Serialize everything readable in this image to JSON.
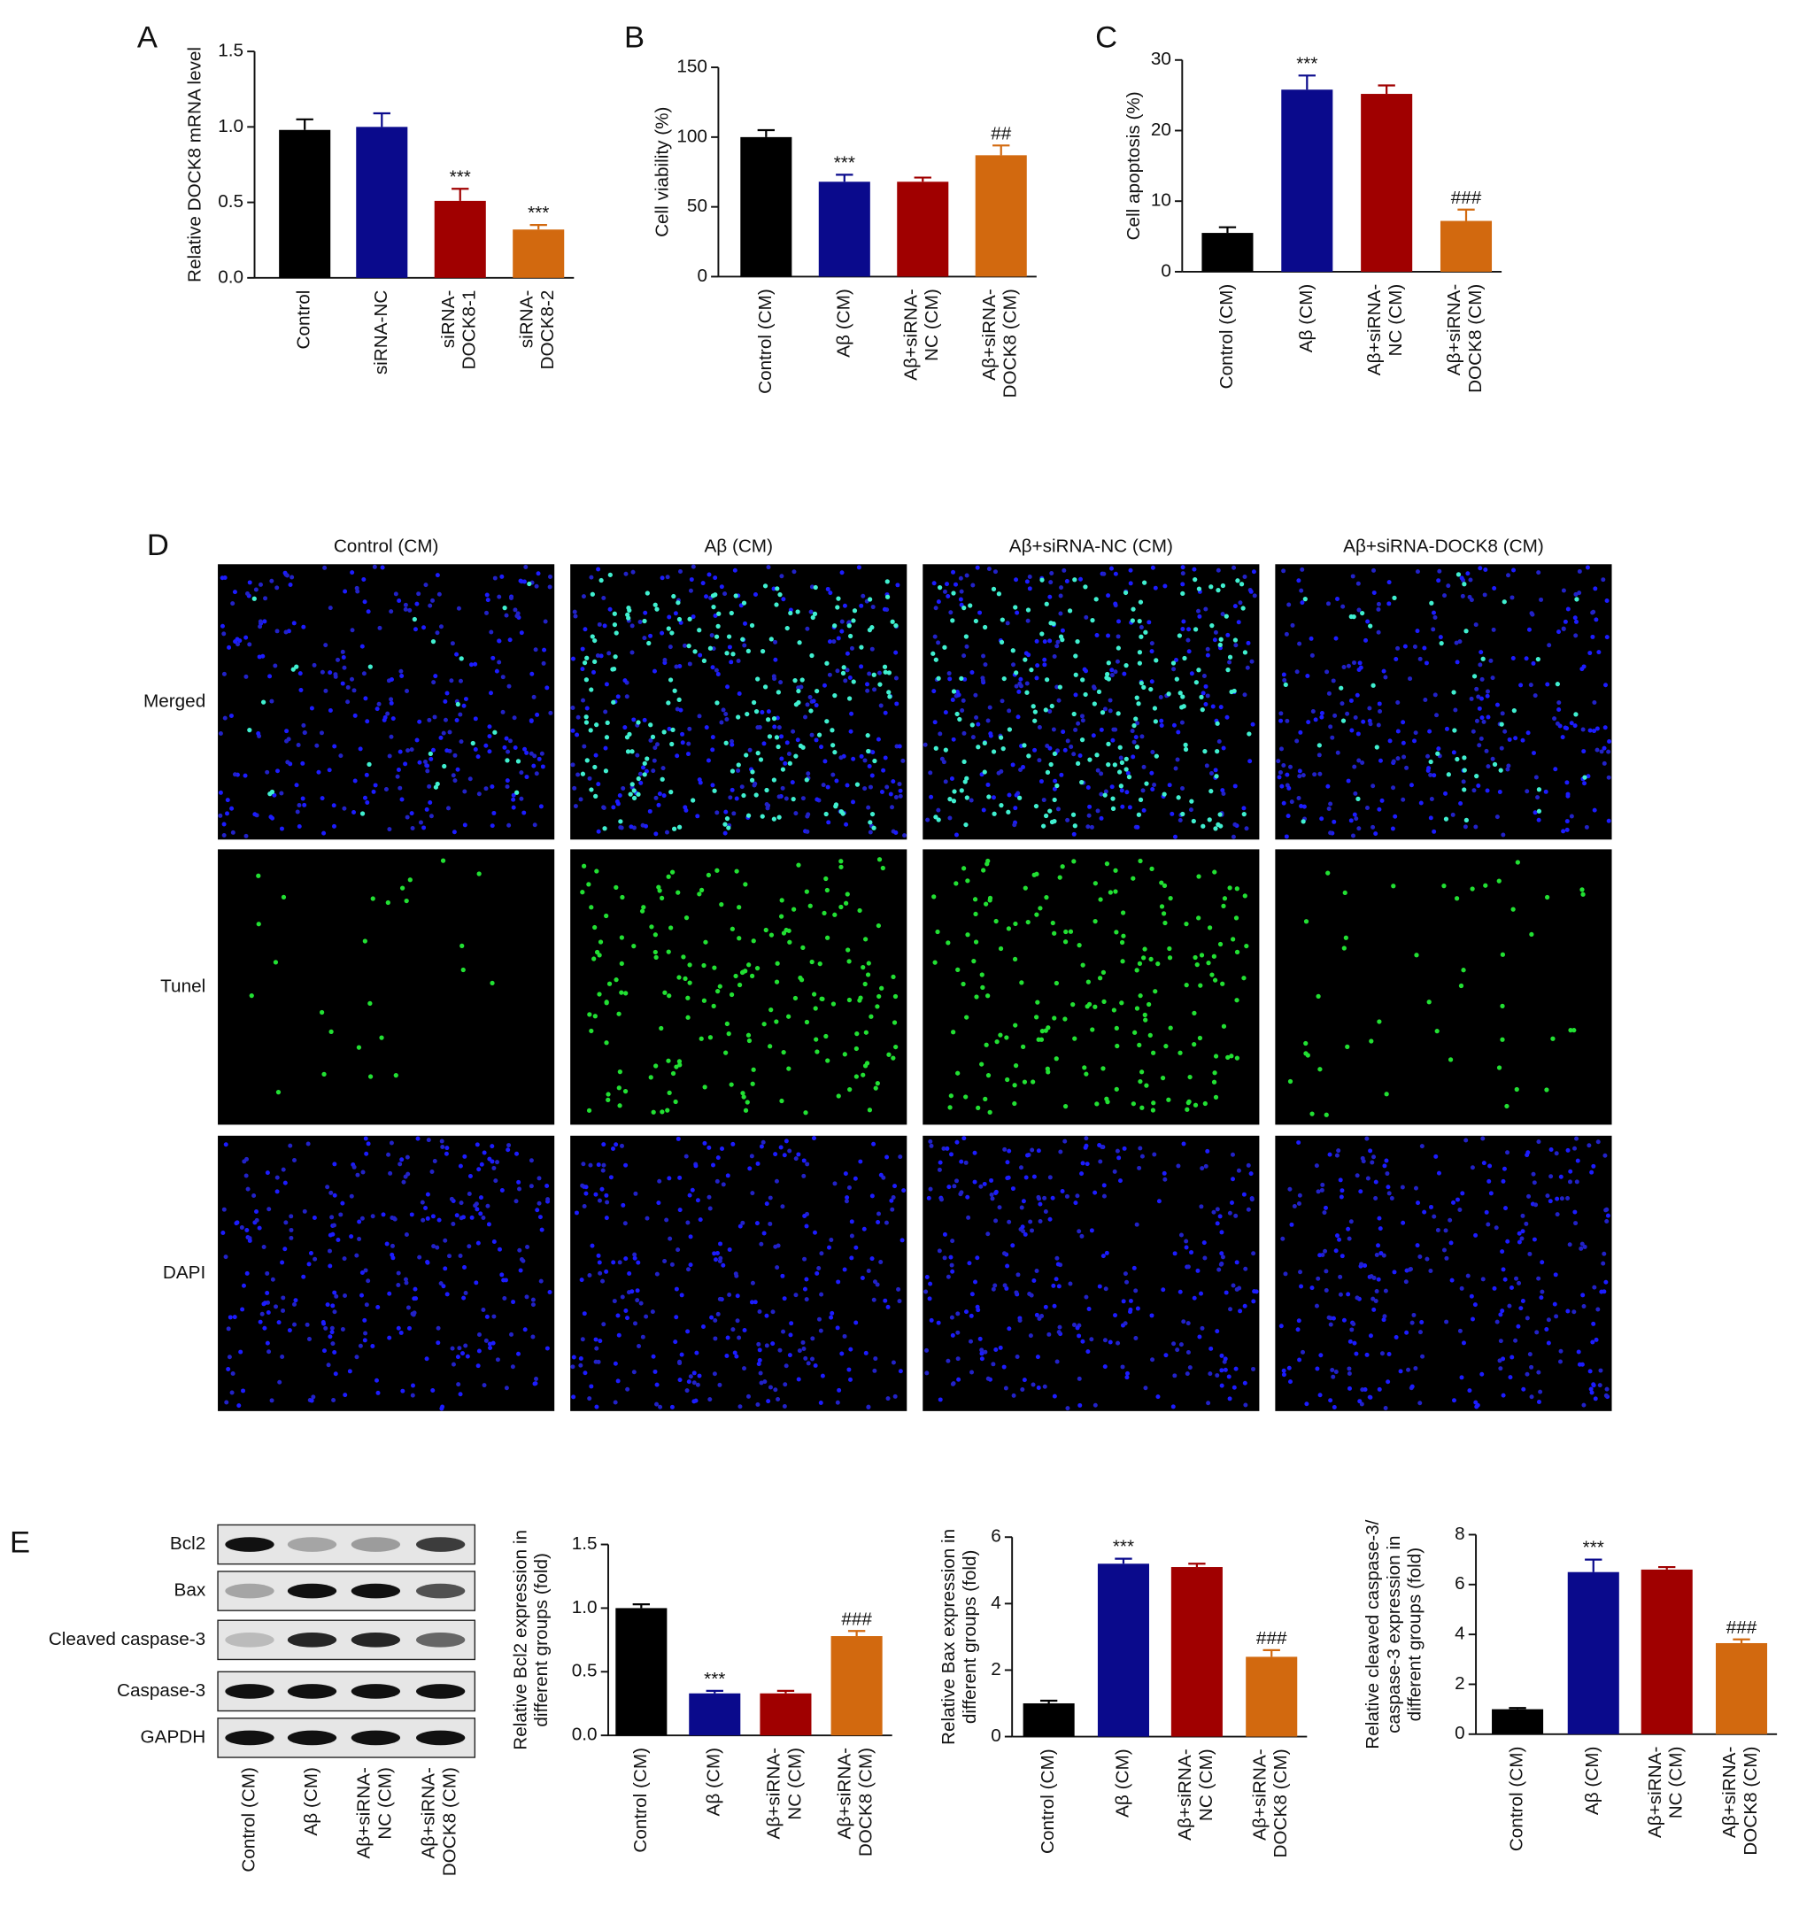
{
  "chart_data": [
    {
      "type": "bar",
      "label": "A",
      "ylabel": "Relative DOCK8 mRNA level",
      "categories": [
        "Control",
        "siRNA-NC",
        "siRNA-\nDOCK8-1",
        "siRNA-\nDOCK8-2"
      ],
      "values": [
        0.98,
        1.0,
        0.51,
        0.32
      ],
      "errors": [
        0.07,
        0.09,
        0.08,
        0.03
      ],
      "colors": [
        "#000000",
        "#0a0a8c",
        "#a00000",
        "#d2690f"
      ],
      "annotations": [
        null,
        null,
        "***",
        "***"
      ],
      "ylim": [
        0,
        1.5
      ],
      "yticks": [
        {
          "value": 0,
          "label": "0.0"
        },
        0.5,
        {
          "value": 1,
          "label": "1.0"
        },
        1.5
      ]
    },
    {
      "type": "bar",
      "label": "B",
      "ylabel": "Cell viability (%)",
      "categories": [
        "Control (CM)",
        "Aβ (CM)",
        "Aβ+siRNA-\nNC (CM)",
        "Aβ+siRNA-\nDOCK8 (CM)"
      ],
      "values": [
        100,
        68,
        68,
        87
      ],
      "errors": [
        5,
        5,
        3,
        7
      ],
      "colors": [
        "#000000",
        "#0a0a8c",
        "#a00000",
        "#d2690f"
      ],
      "annotations": [
        null,
        "***",
        null,
        "##"
      ],
      "ylim": [
        0,
        150
      ],
      "yticks": [
        0,
        50,
        100,
        150
      ]
    },
    {
      "type": "bar",
      "label": "C",
      "ylabel": "Cell apoptosis (%)",
      "categories": [
        "Control (CM)",
        "Aβ (CM)",
        "Aβ+siRNA-\nNC (CM)",
        "Aβ+siRNA-\nDOCK8 (CM)"
      ],
      "values": [
        5.5,
        25.8,
        25.2,
        7.2
      ],
      "errors": [
        0.8,
        2,
        1.2,
        1.6
      ],
      "colors": [
        "#000000",
        "#0a0a8c",
        "#a00000",
        "#d2690f"
      ],
      "annotations": [
        null,
        "***",
        null,
        "###"
      ],
      "ylim": [
        0,
        30
      ],
      "yticks": [
        0,
        10,
        20,
        30
      ]
    },
    {
      "type": "bar",
      "ylabel": "Relative Bcl2 expression in\ndifferent groups (fold)",
      "categories": [
        "Control (CM)",
        "Aβ (CM)",
        "Aβ+siRNA-\nNC (CM)",
        "Aβ+siRNA-\nDOCK8 (CM)"
      ],
      "values": [
        1.0,
        0.33,
        0.33,
        0.78
      ],
      "errors": [
        0.03,
        0.02,
        0.02,
        0.04
      ],
      "colors": [
        "#000000",
        "#0a0a8c",
        "#a00000",
        "#d2690f"
      ],
      "annotations": [
        null,
        "***",
        null,
        "###"
      ],
      "ylim": [
        0,
        1.5
      ],
      "yticks": [
        {
          "value": 0,
          "label": "0.0"
        },
        0.5,
        {
          "value": 1,
          "label": "1.0"
        },
        1.5
      ]
    },
    {
      "type": "bar",
      "ylabel": "Relative Bax expression in\ndifferent groups (fold)",
      "categories": [
        "Control (CM)",
        "Aβ (CM)",
        "Aβ+siRNA-\nNC (CM)",
        "Aβ+siRNA-\nDOCK8 (CM)"
      ],
      "values": [
        1.0,
        5.2,
        5.1,
        2.4
      ],
      "errors": [
        0.08,
        0.15,
        0.1,
        0.2
      ],
      "colors": [
        "#000000",
        "#0a0a8c",
        "#a00000",
        "#d2690f"
      ],
      "annotations": [
        null,
        "***",
        null,
        "###"
      ],
      "ylim": [
        0,
        6
      ],
      "yticks": [
        0,
        2,
        4,
        6
      ]
    },
    {
      "type": "bar",
      "ylabel": "Relative cleaved caspase-3/\ncaspase-3 expression in\ndifferent groups (fold)",
      "categories": [
        "Control (CM)",
        "Aβ (CM)",
        "Aβ+siRNA-\nNC (CM)",
        "Aβ+siRNA-\nDOCK8 (CM)"
      ],
      "values": [
        1.0,
        6.5,
        6.6,
        3.65
      ],
      "errors": [
        0.05,
        0.5,
        0.1,
        0.15
      ],
      "colors": [
        "#000000",
        "#0a0a8c",
        "#a00000",
        "#d2690f"
      ],
      "annotations": [
        null,
        "***",
        null,
        "###"
      ],
      "ylim": [
        0,
        8
      ],
      "yticks": [
        0,
        2,
        4,
        6,
        8
      ]
    }
  ],
  "micrographs": {
    "label": "D",
    "columns": [
      "Control (CM)",
      "Aβ (CM)",
      "Aβ+siRNA-NC (CM)",
      "Aβ+siRNA-DOCK8 (CM)"
    ],
    "rows": [
      "Merged",
      "Tunel",
      "DAPI"
    ]
  },
  "western_blot": {
    "label": "E",
    "proteins": [
      "Bcl2",
      "Bax",
      "Cleaved caspase-3",
      "Caspase-3",
      "GAPDH"
    ],
    "lanes": [
      "Control (CM)",
      "Aβ (CM)",
      "Aβ+siRNA-\nNC (CM)",
      "Aβ+siRNA-\nDOCK8 (CM)"
    ]
  }
}
